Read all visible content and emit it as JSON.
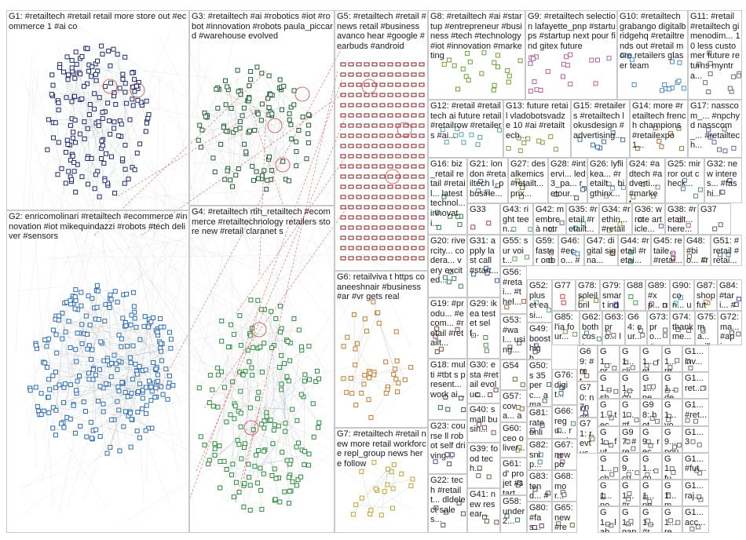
{
  "groups": [
    {
      "id": "G1",
      "label": "G1: #retailtech #retail retail more store out #ecommerce 1 #ai co",
      "color": "#1a2a6c"
    },
    {
      "id": "G2",
      "label": "G2: enricomolinari #retailtech #ecommerce #innovation #iot mikequindazzi #robots #tech deliver #sensors",
      "color": "#2a6cb0"
    },
    {
      "id": "G3",
      "label": "G3: #retailtech #ai #robotics #iot #robot #innovation #robots paula_piccard #warehouse evolved",
      "color": "#1e5e32"
    },
    {
      "id": "G4",
      "label": "G4: #retailtech rtih_retailtech #ecommerce #retailtechnology retailers store new #retail claranet s",
      "color": "#2a8a3a"
    },
    {
      "id": "G5",
      "label": "G5: #retailtech #retail #news retail #business avanco hear #google #earbuds #android",
      "color": "#8a1a1a"
    },
    {
      "id": "G6",
      "label": "G6: retailviva t https co aneeshnair #business #ar #vr gets real",
      "color": "#c07a2a"
    },
    {
      "id": "G7",
      "label": "G7: #retailtech #retail new more retail workforce repl_group news here follow",
      "color": "#c0a030"
    },
    {
      "id": "G8",
      "label": "G8: #retailtech #ai #startup #entrepreneur #business #tech #technology #iot #innovation #marketing",
      "color": "#6aa030"
    },
    {
      "id": "G9",
      "label": "G9: #retailtech selection lafayette_pnp #startups #startup next pour find gitex future",
      "color": "#b060a0"
    },
    {
      "id": "G10",
      "label": "G10: #retailtech grabango digitalbridgehq #retailtrends out #retail more retailers glaser team",
      "color": "#4a8ac0"
    },
    {
      "id": "G11",
      "label": "G11: #retail #retailtech gimenodim... 10 less customer future returns myntra...",
      "color": "#607080"
    },
    {
      "id": "G12",
      "label": "G12: #retail #retailtech ai future retail #retailrow #retailers #ai...",
      "color": "#5aa0b0"
    },
    {
      "id": "G13",
      "label": "G13: future retail vladobotsvadze 10 #ai #retailtech...",
      "color": "#80a040"
    },
    {
      "id": "G15",
      "label": "G15: #retailers #retailtech lokusdesign #advertising...",
      "color": "#4070a0"
    },
    {
      "id": "G14",
      "label": "G14: more #retailtech french champions #retailexpo1...",
      "color": "#a07040"
    },
    {
      "id": "G17",
      "label": "G17: nasscom_... #npchyd nasscom_... #retailtech...",
      "color": "#7060a0"
    },
    {
      "id": "G16",
      "label": "G16: biz_retail retail #retail... latest technol... innovati...",
      "color": "#3a7a4a"
    },
    {
      "id": "G21",
      "label": "G21: london #retailtech l_pbusine...",
      "color": "#5a7aa0"
    },
    {
      "id": "G27",
      "label": "G27: des alkemics #retailt... prix...",
      "color": "#708040"
    },
    {
      "id": "G28",
      "label": "G28: #intervi... led3_pa... retour...",
      "color": "#406080"
    },
    {
      "id": "G26",
      "label": "G26: lyflikea... #retailt... bigthinx...",
      "color": "#80a0c0"
    },
    {
      "id": "G24",
      "label": "G24: #adtech #adverti... #market...",
      "color": "#a08060"
    },
    {
      "id": "G25",
      "label": "G25: mirror out check...",
      "color": "#6080a0"
    },
    {
      "id": "G32",
      "label": "G32: new interes... #fashi...",
      "color": "#5a5a8a"
    },
    {
      "id": "G20",
      "label": "G20: rivercity... codera... very excited...",
      "color": "#408060"
    },
    {
      "id": "G33",
      "label": "G33",
      "color": "#a04060"
    },
    {
      "id": "G43",
      "label": "G43: right teen...",
      "color": "#60a080"
    },
    {
      "id": "G42",
      "label": "G42: membre à notre...",
      "color": "#8060a0"
    },
    {
      "id": "G35",
      "label": "G35: #retail #retailt...",
      "color": "#40a0a0"
    },
    {
      "id": "G34",
      "label": "G34: #rethin... #retailt...",
      "color": "#a0a040"
    },
    {
      "id": "G36",
      "label": "G36: wrote article...",
      "color": "#6060c0"
    },
    {
      "id": "G38",
      "label": "G38: #retailt... here...",
      "color": "#c06060"
    },
    {
      "id": "G37",
      "label": "G37",
      "color": "#606060"
    },
    {
      "id": "G31",
      "label": "G31: apply last call #start...",
      "color": "#4060a0"
    },
    {
      "id": "G55",
      "label": "G55: sur voit...",
      "color": "#60a060"
    },
    {
      "id": "G59",
      "label": "G59: faster onbo...",
      "color": "#a06080"
    },
    {
      "id": "G46",
      "label": "G46: #eco... #retai...",
      "color": "#5080b0"
    },
    {
      "id": "G47",
      "label": "G47: digital signa...",
      "color": "#806040"
    },
    {
      "id": "G44",
      "label": "G44: #retail #retai...",
      "color": "#40a060"
    },
    {
      "id": "G45",
      "label": "G45: retaile... #retai...",
      "color": "#a04080"
    },
    {
      "id": "G48",
      "label": "G48: #bio... #retai...",
      "color": "#608040"
    },
    {
      "id": "G51",
      "label": "G51: #retail #retai...",
      "color": "#4080a0"
    },
    {
      "id": "G19",
      "label": "G19: #produ... #ecom... #retail #retailt...",
      "color": "#7a4a3a"
    },
    {
      "id": "G56",
      "label": "G56: #retai... #thel...",
      "color": "#a06040"
    },
    {
      "id": "G52",
      "label": "G52: plus et easi...",
      "color": "#60a0a0"
    },
    {
      "id": "G77",
      "label": "G77",
      "color": "#c04040"
    },
    {
      "id": "G78",
      "label": "G78: soleil brill...",
      "color": "#808040"
    },
    {
      "id": "G79",
      "label": "G79: smart indu...",
      "color": "#4060c0"
    },
    {
      "id": "G88",
      "label": "G88",
      "color": "#40a040"
    },
    {
      "id": "G89",
      "label": "G89: #xp... nas...",
      "color": "#a040a0"
    },
    {
      "id": "G90",
      "label": "G90: con... unifi...",
      "color": "#40a0c0"
    },
    {
      "id": "G87",
      "label": "G87: shop futu...",
      "color": "#c08040"
    },
    {
      "id": "G84",
      "label": "G84: #tari... #ma...",
      "color": "#6040a0"
    },
    {
      "id": "G29",
      "label": "G29: ikea testet self...",
      "color": "#5a8a5a"
    },
    {
      "id": "G53",
      "label": "G53: #wal... using...",
      "color": "#8a5a5a"
    },
    {
      "id": "G49",
      "label": "G49: boost high...",
      "color": "#5a5a8a"
    },
    {
      "id": "G85",
      "label": "G85: l'ia four...",
      "color": "#8a8a5a"
    },
    {
      "id": "G62",
      "label": "G62: both cust...",
      "color": "#5a8a8a"
    },
    {
      "id": "G63",
      "label": "G63: pro... les...",
      "color": "#8a5a8a"
    },
    {
      "id": "G64",
      "label": "G64: eur... s...",
      "color": "#6a7a5a"
    },
    {
      "id": "G73",
      "label": "G73: pro... #re...",
      "color": "#5a6a7a"
    },
    {
      "id": "G74",
      "label": "G74: thankme... ma...",
      "color": "#7a5a6a"
    },
    {
      "id": "G75",
      "label": "G75: ma... milli...",
      "color": "#5a7a6a"
    },
    {
      "id": "G72",
      "label": "G72: ma... #api...",
      "color": "#6a5a7a"
    },
    {
      "id": "G18",
      "label": "G18: multi #tbt s present... work ai...",
      "color": "#3a5a7a"
    },
    {
      "id": "G30",
      "label": "G30: esta #retail evoluc...",
      "color": "#7a3a5a"
    },
    {
      "id": "G54",
      "label": "G54",
      "color": "#5a7a3a"
    },
    {
      "id": "G50",
      "label": "G50: s 35 perc... ama...",
      "color": "#3a7a5a"
    },
    {
      "id": "G69",
      "label": "G69: #ret... #cs...",
      "color": "#7a5a3a"
    },
    {
      "id": "G70",
      "label": "G70: n7n driv...",
      "color": "#5a3a7a"
    },
    {
      "id": "G76",
      "label": "G76: digit...",
      "color": "#4a6a8a"
    },
    {
      "id": "G57",
      "label": "G57: cova... avail...",
      "color": "#8a6a4a"
    },
    {
      "id": "G66",
      "label": "G66: regu... retai...",
      "color": "#4a8a6a"
    },
    {
      "id": "G81",
      "label": "G81: rate onlin...",
      "color": "#6a4a8a"
    },
    {
      "id": "G40",
      "label": "G40: small busin...",
      "color": "#8a4a6a"
    },
    {
      "id": "G71",
      "label": "G71: revt use...",
      "color": "#6a8a4a"
    },
    {
      "id": "G23",
      "label": "G23: course ll robot self driving...",
      "color": "#4a4a8a"
    },
    {
      "id": "G60",
      "label": "G60: ceo oliver...",
      "color": "#8a8a4a"
    },
    {
      "id": "G82",
      "label": "G82: snip... metr...",
      "color": "#4a8a8a"
    },
    {
      "id": "G67",
      "label": "G67: new pod...",
      "color": "#8a4a8a"
    },
    {
      "id": "G39",
      "label": "G39: food tech...",
      "color": "#5a6a4a"
    },
    {
      "id": "G61",
      "label": "G61: d' projet #start...",
      "color": "#4a5a6a"
    },
    {
      "id": "G83",
      "label": "G83: tend... #ret...",
      "color": "#6a4a5a"
    },
    {
      "id": "G68",
      "label": "G68: mor...",
      "color": "#4a6a5a"
    },
    {
      "id": "G22",
      "label": "G22: tech #retailt... dldelect sales...",
      "color": "#5a4a6a"
    },
    {
      "id": "G41",
      "label": "G41: new resear...",
      "color": "#6a5a4a"
    },
    {
      "id": "G58",
      "label": "G58: under 2...",
      "color": "#3a6a6a"
    },
    {
      "id": "G80",
      "label": "G80: #fas...",
      "color": "#6a3a6a"
    },
    {
      "id": "G65",
      "label": "G65: new #ret...",
      "color": "#6a6a3a"
    },
    {
      "id": "G1_r1c1",
      "label": "G1... pro...",
      "color": "#707070"
    },
    {
      "id": "G1_r1c2",
      "label": "G1... clic...",
      "color": "#707070"
    },
    {
      "id": "G1_r1c3",
      "label": "G1... ret...",
      "color": "#707070"
    },
    {
      "id": "G1_r1c4",
      "label": "G1... ret...",
      "color": "#707070"
    },
    {
      "id": "G1_r1c5",
      "label": "G1... inv...",
      "color": "#707070"
    },
    {
      "id": "G1_r2c1",
      "label": "G1... sh...",
      "color": "#707070"
    },
    {
      "id": "G1_r2c2",
      "label": "G1... cus...",
      "color": "#707070"
    },
    {
      "id": "G1_r2c3",
      "label": "G1... ne...",
      "color": "#707070"
    },
    {
      "id": "G1_r2c4",
      "label": "G1... dec...",
      "color": "#707070"
    },
    {
      "id": "G1_r2c5",
      "label": "G1... ret...",
      "color": "#707070"
    },
    {
      "id": "G1_r3c1",
      "label": "G1... tec...",
      "color": "#707070"
    },
    {
      "id": "G1_r3c2",
      "label": "G1... #fa...",
      "color": "#707070"
    },
    {
      "id": "G98",
      "label": "G98: hot...",
      "color": "#707070"
    },
    {
      "id": "G1_r3c4",
      "label": "G1... vo...",
      "color": "#707070"
    },
    {
      "id": "G1_r3c5",
      "label": "G1... #ret...",
      "color": "#707070"
    },
    {
      "id": "G1_r4c1",
      "label": "G1... fut...",
      "color": "#707070"
    },
    {
      "id": "G97",
      "label": "G97: #re...",
      "color": "#707070"
    },
    {
      "id": "G9x",
      "label": "G9... rec...",
      "color": "#707070"
    },
    {
      "id": "G9y",
      "label": "G9... pour",
      "color": "#707070"
    },
    {
      "id": "G1_r4c5",
      "label": "G1... 3",
      "color": "#707070"
    },
    {
      "id": "G1_r5c1",
      "label": "G1... che...",
      "color": "#707070"
    },
    {
      "id": "G9z",
      "label": "G9... cus...",
      "color": "#707070"
    },
    {
      "id": "G1_r5c3",
      "label": "G1... cus...",
      "color": "#707070"
    },
    {
      "id": "G1_r5c4",
      "label": "G1... fut...",
      "color": "#707070"
    },
    {
      "id": "G1_r5c5",
      "label": "G1... #fut...",
      "color": "#707070"
    },
    {
      "id": "G1_r6c1",
      "label": "G1... no...",
      "color": "#707070"
    },
    {
      "id": "G1_r6c2",
      "label": "G1... #re...",
      "color": "#707070"
    },
    {
      "id": "G1_r6c3",
      "label": "G1... pe...",
      "color": "#707070"
    },
    {
      "id": "G1_r6c4",
      "label": "G1... me...",
      "color": "#707070"
    },
    {
      "id": "G1_r6c5",
      "label": "G1... raj...",
      "color": "#707070"
    },
    {
      "id": "G1_r7c1",
      "label": "G1... lab...",
      "color": "#707070"
    },
    {
      "id": "G1_r7c2",
      "label": "G1... gap",
      "color": "#707070"
    },
    {
      "id": "G1_r7c3",
      "label": "G1... #re...",
      "color": "#707070"
    },
    {
      "id": "G1_r7c4",
      "label": "G1... ret...",
      "color": "#707070"
    },
    {
      "id": "G1_r7c5",
      "label": "G1... acc...",
      "color": "#707070"
    }
  ]
}
